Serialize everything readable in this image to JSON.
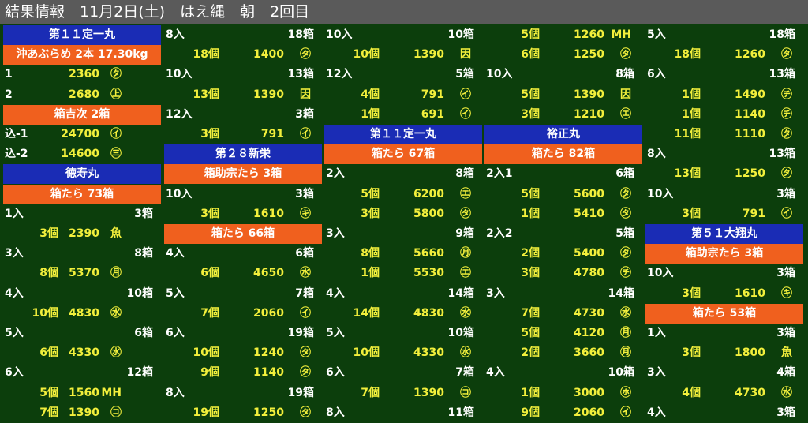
{
  "title": "結果情報　11月2日(土)　はえ縄　朝　2回目",
  "colors": {
    "background": "#0c3e0c",
    "header": "#1a2cb5",
    "subheader": "#f0601e",
    "value": "#f2ef3c",
    "label": "#ffffff"
  },
  "columns": [
    {
      "rows": [
        {
          "type": "head",
          "text": "第１１定一丸"
        },
        {
          "type": "sub",
          "text": "沖あぶらめ 2本 17.30kg"
        },
        {
          "type": "val",
          "label": "1",
          "price": "2360",
          "mark": "㋟"
        },
        {
          "type": "val",
          "label": "2",
          "price": "2680",
          "mark": "㊤"
        },
        {
          "type": "sub",
          "text": "箱吉次 2箱"
        },
        {
          "type": "val",
          "label": "込-1",
          "price": "24700",
          "mark": "㋑"
        },
        {
          "type": "val",
          "label": "込-2",
          "price": "14600",
          "mark": "㊂"
        },
        {
          "type": "head",
          "text": "徳寿丸"
        },
        {
          "type": "sub",
          "text": "箱たら 73箱"
        },
        {
          "type": "lot",
          "left": "1入",
          "right": "3箱"
        },
        {
          "type": "val",
          "count": "3個",
          "price": "2390",
          "mark": "魚"
        },
        {
          "type": "lot",
          "left": "3入",
          "right": "8箱"
        },
        {
          "type": "val",
          "count": "8個",
          "price": "5370",
          "mark": "㊊"
        },
        {
          "type": "lot",
          "left": "4入",
          "right": "10箱"
        },
        {
          "type": "val",
          "count": "10個",
          "price": "4830",
          "mark": "㊌"
        },
        {
          "type": "lot",
          "left": "5入",
          "right": "6箱"
        },
        {
          "type": "val",
          "count": "6個",
          "price": "4330",
          "mark": "㊌"
        },
        {
          "type": "lot",
          "left": "6入",
          "right": "12箱"
        },
        {
          "type": "val",
          "count": "5個",
          "price": "1560",
          "mark": "MH"
        },
        {
          "type": "val",
          "count": "7個",
          "price": "1390",
          "mark": "㋙"
        }
      ]
    },
    {
      "rows": [
        {
          "type": "lot",
          "left": "8入",
          "right": "18箱"
        },
        {
          "type": "val",
          "count": "18個",
          "price": "1400",
          "mark": "㋟"
        },
        {
          "type": "lot",
          "left": "10入",
          "right": "13箱"
        },
        {
          "type": "val",
          "count": "13個",
          "price": "1390",
          "mark": "因"
        },
        {
          "type": "lot",
          "left": "12入",
          "right": "3箱"
        },
        {
          "type": "val",
          "count": "3個",
          "price": "791",
          "mark": "㋑"
        },
        {
          "type": "head",
          "text": "第２８新栄"
        },
        {
          "type": "sub",
          "text": "箱助宗たら 3箱"
        },
        {
          "type": "lot",
          "left": "10入",
          "right": "3箱"
        },
        {
          "type": "val",
          "count": "3個",
          "price": "1610",
          "mark": "㋖"
        },
        {
          "type": "sub",
          "text": "箱たら 66箱"
        },
        {
          "type": "lot",
          "left": "4入",
          "right": "6箱"
        },
        {
          "type": "val",
          "count": "6個",
          "price": "4650",
          "mark": "㊌"
        },
        {
          "type": "lot",
          "left": "5入",
          "right": "7箱"
        },
        {
          "type": "val",
          "count": "7個",
          "price": "2060",
          "mark": "㋑"
        },
        {
          "type": "lot",
          "left": "6入",
          "right": "19箱"
        },
        {
          "type": "val",
          "count": "10個",
          "price": "1240",
          "mark": "㋟"
        },
        {
          "type": "val",
          "count": "9個",
          "price": "1140",
          "mark": "㋟"
        },
        {
          "type": "lot",
          "left": "8入",
          "right": "19箱"
        },
        {
          "type": "val",
          "count": "19個",
          "price": "1250",
          "mark": "㋟"
        }
      ]
    },
    {
      "rows": [
        {
          "type": "lot",
          "left": "10入",
          "right": "10箱"
        },
        {
          "type": "val",
          "count": "10個",
          "price": "1390",
          "mark": "因"
        },
        {
          "type": "lot",
          "left": "12入",
          "right": "5箱"
        },
        {
          "type": "val",
          "count": "4個",
          "price": "791",
          "mark": "㋑"
        },
        {
          "type": "val",
          "count": "1個",
          "price": "691",
          "mark": "㋑"
        },
        {
          "type": "head",
          "text": "第１１定一丸"
        },
        {
          "type": "sub",
          "text": "箱たら 67箱"
        },
        {
          "type": "lot",
          "left": "2入",
          "right": "8箱"
        },
        {
          "type": "val",
          "count": "5個",
          "price": "6200",
          "mark": "㋓"
        },
        {
          "type": "val",
          "count": "3個",
          "price": "5800",
          "mark": "㋟"
        },
        {
          "type": "lot",
          "left": "3入",
          "right": "9箱"
        },
        {
          "type": "val",
          "count": "8個",
          "price": "5660",
          "mark": "㊊"
        },
        {
          "type": "val",
          "count": "1個",
          "price": "5530",
          "mark": "㋓"
        },
        {
          "type": "lot",
          "left": "4入",
          "right": "14箱"
        },
        {
          "type": "val",
          "count": "14個",
          "price": "4830",
          "mark": "㊌"
        },
        {
          "type": "lot",
          "left": "5入",
          "right": "10箱"
        },
        {
          "type": "val",
          "count": "10個",
          "price": "4330",
          "mark": "㊌"
        },
        {
          "type": "lot",
          "left": "6入",
          "right": "7箱"
        },
        {
          "type": "val",
          "count": "7個",
          "price": "1390",
          "mark": "㋙"
        },
        {
          "type": "lot",
          "left": "8入",
          "right": "11箱"
        }
      ]
    },
    {
      "rows": [
        {
          "type": "val",
          "count": "5個",
          "price": "1260",
          "mark": "MH"
        },
        {
          "type": "val",
          "count": "6個",
          "price": "1250",
          "mark": "㋟"
        },
        {
          "type": "lot",
          "left": "10入",
          "right": "8箱"
        },
        {
          "type": "val",
          "count": "5個",
          "price": "1390",
          "mark": "因"
        },
        {
          "type": "val",
          "count": "3個",
          "price": "1210",
          "mark": "㋓"
        },
        {
          "type": "head",
          "text": "裕正丸"
        },
        {
          "type": "sub",
          "text": "箱たら 82箱"
        },
        {
          "type": "lot",
          "left": "2入1",
          "right": "6箱"
        },
        {
          "type": "val",
          "count": "5個",
          "price": "5600",
          "mark": "㋟"
        },
        {
          "type": "val",
          "count": "1個",
          "price": "5410",
          "mark": "㋟"
        },
        {
          "type": "lot",
          "left": "2入2",
          "right": "5箱"
        },
        {
          "type": "val",
          "count": "2個",
          "price": "5400",
          "mark": "㋟"
        },
        {
          "type": "val",
          "count": "3個",
          "price": "4780",
          "mark": "㋠"
        },
        {
          "type": "lot",
          "left": "3入",
          "right": "14箱"
        },
        {
          "type": "val",
          "count": "7個",
          "price": "4730",
          "mark": "㊌"
        },
        {
          "type": "val",
          "count": "5個",
          "price": "4120",
          "mark": "㊊"
        },
        {
          "type": "val",
          "count": "2個",
          "price": "3660",
          "mark": "㊊"
        },
        {
          "type": "lot",
          "left": "4入",
          "right": "10箱"
        },
        {
          "type": "val",
          "count": "1個",
          "price": "3000",
          "mark": "㋭"
        },
        {
          "type": "val",
          "count": "9個",
          "price": "2060",
          "mark": "㋑"
        }
      ]
    },
    {
      "rows": [
        {
          "type": "lot",
          "left": "5入",
          "right": "18箱"
        },
        {
          "type": "val",
          "count": "18個",
          "price": "1260",
          "mark": "㋟"
        },
        {
          "type": "lot",
          "left": "6入",
          "right": "13箱"
        },
        {
          "type": "val",
          "count": "1個",
          "price": "1490",
          "mark": "㋠"
        },
        {
          "type": "val",
          "count": "1個",
          "price": "1140",
          "mark": "㋠"
        },
        {
          "type": "val",
          "count": "11個",
          "price": "1110",
          "mark": "㋟"
        },
        {
          "type": "lot",
          "left": "8入",
          "right": "13箱"
        },
        {
          "type": "val",
          "count": "13個",
          "price": "1250",
          "mark": "㋟"
        },
        {
          "type": "lot",
          "left": "10入",
          "right": "3箱"
        },
        {
          "type": "val",
          "count": "3個",
          "price": "791",
          "mark": "㋑"
        },
        {
          "type": "head",
          "text": "第５１大翔丸"
        },
        {
          "type": "sub",
          "text": "箱助宗たら 3箱"
        },
        {
          "type": "lot",
          "left": "10入",
          "right": "3箱"
        },
        {
          "type": "val",
          "count": "3個",
          "price": "1610",
          "mark": "㋖"
        },
        {
          "type": "sub",
          "text": "箱たら 53箱"
        },
        {
          "type": "lot",
          "left": "1入",
          "right": "3箱"
        },
        {
          "type": "val",
          "count": "3個",
          "price": "1800",
          "mark": "魚"
        },
        {
          "type": "lot",
          "left": "3入",
          "right": "4箱"
        },
        {
          "type": "val",
          "count": "4個",
          "price": "4730",
          "mark": "㊌"
        },
        {
          "type": "lot",
          "left": "4入",
          "right": "3箱"
        }
      ]
    }
  ]
}
